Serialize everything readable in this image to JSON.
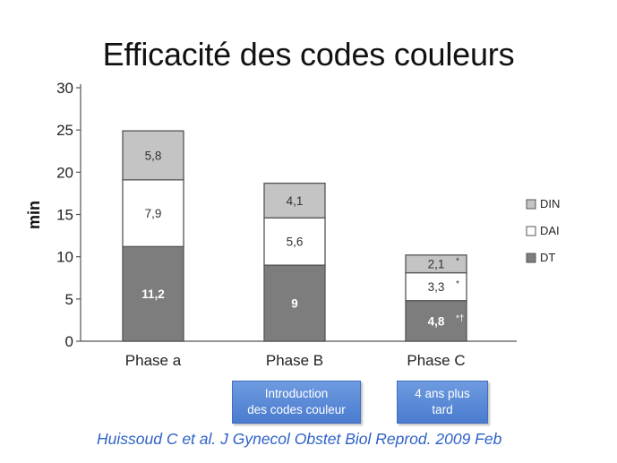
{
  "slide": {
    "title": "Efficacité des codes couleurs",
    "notes": [
      {
        "line1": "Introduction",
        "line2": "des codes couleur"
      },
      {
        "line1": "4 ans plus",
        "line2": "tard"
      }
    ],
    "citation": "Huissoud C et al. J Gynecol Obstet Biol Reprod. 2009 Feb"
  },
  "chart_data": {
    "type": "bar",
    "stacked": true,
    "title": "",
    "xlabel": "",
    "ylabel": "min",
    "ylim": [
      0,
      30
    ],
    "yticks": [
      0,
      5,
      10,
      15,
      20,
      25,
      30
    ],
    "categories": [
      "Phase a",
      "Phase B",
      "Phase C"
    ],
    "series": [
      {
        "name": "DT",
        "values": [
          11.2,
          9,
          4.8
        ],
        "labels": [
          "11,2",
          "9",
          "4,8"
        ],
        "markers": [
          "",
          "",
          "*†"
        ],
        "color": "#7d7d7d"
      },
      {
        "name": "DAI",
        "values": [
          7.9,
          5.6,
          3.3
        ],
        "labels": [
          "7,9",
          "5,6",
          "3,3"
        ],
        "markers": [
          "",
          "",
          "*"
        ],
        "color": "#ffffff"
      },
      {
        "name": "DIN",
        "values": [
          5.8,
          4.1,
          2.1
        ],
        "labels": [
          "5,8",
          "4,1",
          "2,1"
        ],
        "markers": [
          "",
          "",
          "*"
        ],
        "color": "#c4c4c4"
      }
    ],
    "legend": {
      "placement": "right",
      "order": [
        "DIN",
        "DAI",
        "DT"
      ]
    },
    "grid": false
  }
}
